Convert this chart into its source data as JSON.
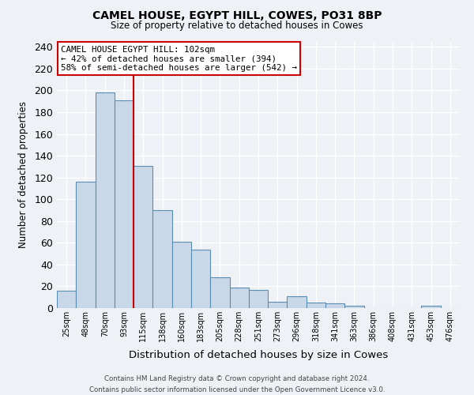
{
  "title": "CAMEL HOUSE, EGYPT HILL, COWES, PO31 8BP",
  "subtitle": "Size of property relative to detached houses in Cowes",
  "xlabel": "Distribution of detached houses by size in Cowes",
  "ylabel": "Number of detached properties",
  "bar_labels": [
    "25sqm",
    "48sqm",
    "70sqm",
    "93sqm",
    "115sqm",
    "138sqm",
    "160sqm",
    "183sqm",
    "205sqm",
    "228sqm",
    "251sqm",
    "273sqm",
    "296sqm",
    "318sqm",
    "341sqm",
    "363sqm",
    "386sqm",
    "408sqm",
    "431sqm",
    "453sqm",
    "476sqm"
  ],
  "bar_values": [
    16,
    116,
    198,
    191,
    131,
    90,
    61,
    54,
    28,
    19,
    17,
    6,
    11,
    5,
    4,
    2,
    0,
    0,
    0,
    2,
    0
  ],
  "bar_color": "#c8d8e8",
  "bar_edge_color": "#5b8db0",
  "vline_x": 3.5,
  "vline_color": "#cc0000",
  "annotation_title": "CAMEL HOUSE EGYPT HILL: 102sqm",
  "annotation_line1": "← 42% of detached houses are smaller (394)",
  "annotation_line2": "58% of semi-detached houses are larger (542) →",
  "annotation_box_color": "#ffffff",
  "annotation_box_edge": "#cc0000",
  "ylim": [
    0,
    245
  ],
  "yticks": [
    0,
    20,
    40,
    60,
    80,
    100,
    120,
    140,
    160,
    180,
    200,
    220,
    240
  ],
  "footer1": "Contains HM Land Registry data © Crown copyright and database right 2024.",
  "footer2": "Contains public sector information licensed under the Open Government Licence v3.0.",
  "bg_color": "#eef2f7"
}
